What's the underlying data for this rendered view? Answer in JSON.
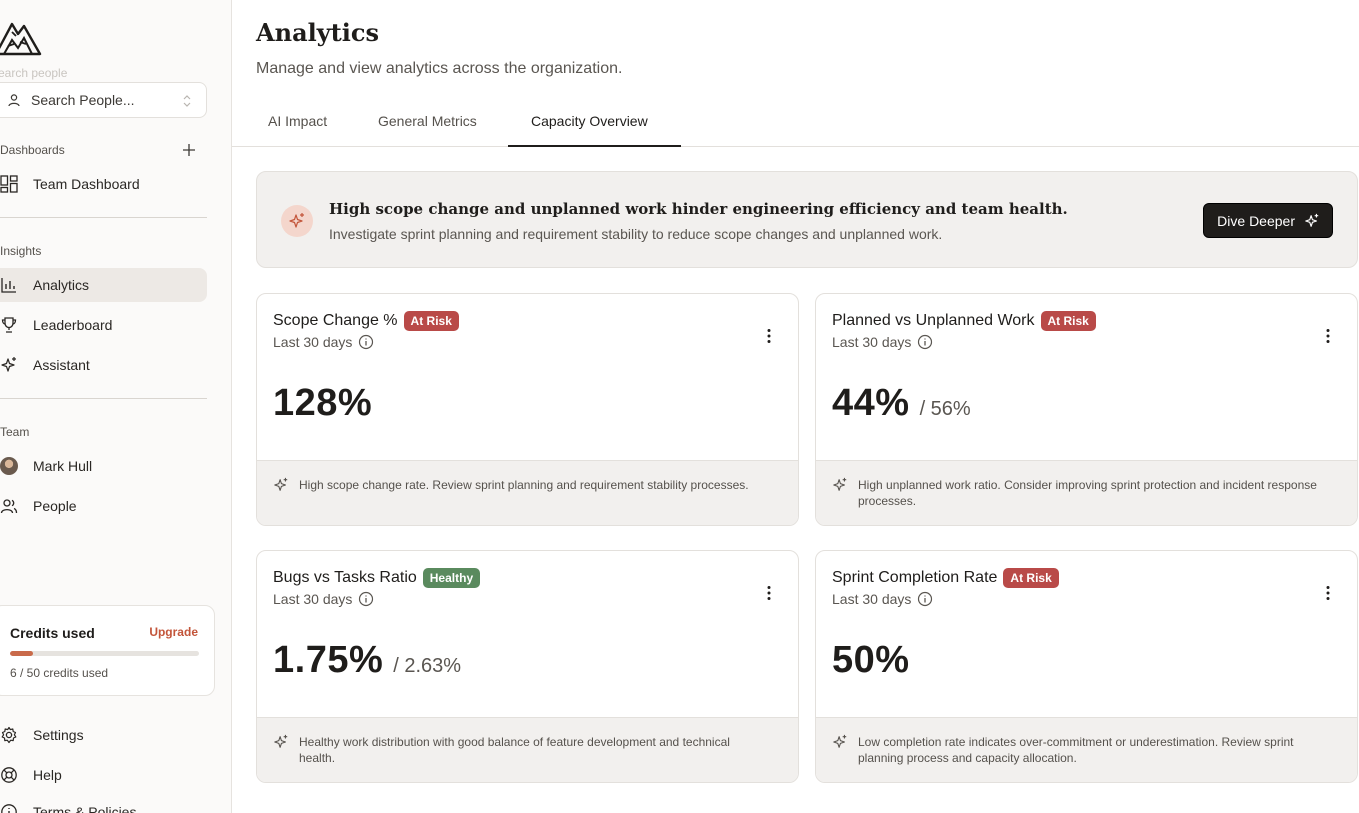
{
  "sidebar": {
    "search_hint": "earch people",
    "search_placeholder": "Search People...",
    "dashboards_label": "Dashboards",
    "dashboards": [
      {
        "label": "Team Dashboard",
        "icon": "grid-icon"
      }
    ],
    "insights_label": "Insights",
    "insights": [
      {
        "label": "Analytics",
        "icon": "bar-chart-icon",
        "active": true
      },
      {
        "label": "Leaderboard",
        "icon": "trophy-icon"
      },
      {
        "label": "Assistant",
        "icon": "sparkle-icon"
      }
    ],
    "team_label": "Team",
    "team": [
      {
        "label": "Mark Hull",
        "icon": "avatar"
      },
      {
        "label": "People",
        "icon": "users-icon"
      }
    ],
    "credits": {
      "title": "Credits used",
      "upgrade": "Upgrade",
      "used": 6,
      "total": 50,
      "count_text": "6 / 50 credits used"
    },
    "bottom": [
      {
        "label": "Settings",
        "icon": "gear-icon"
      },
      {
        "label": "Help",
        "icon": "lifebuoy-icon"
      },
      {
        "label": "Terms & Policies",
        "icon": "info-icon"
      }
    ]
  },
  "main": {
    "title": "Analytics",
    "subtitle": "Manage and view analytics across the organization.",
    "tabs": [
      {
        "label": "AI Impact"
      },
      {
        "label": "General Metrics"
      },
      {
        "label": "Capacity Overview",
        "active": true
      }
    ],
    "insight": {
      "headline": "High scope change and unplanned work hinder engineering efficiency and team health.",
      "detail": "Investigate sprint planning and requirement stability to reduce scope changes and unplanned work.",
      "button": "Dive Deeper"
    },
    "cards": [
      {
        "title": "Scope Change %",
        "status": "At Risk",
        "period": "Last 30 days",
        "value": "128%",
        "secondary": "",
        "note": "High scope change rate. Review sprint planning and requirement stability processes."
      },
      {
        "title": "Planned vs Unplanned Work",
        "status": "At Risk",
        "period": "Last 30 days",
        "value": "44%",
        "secondary": "/ 56%",
        "note": "High unplanned work ratio. Consider improving sprint protection and incident response processes."
      },
      {
        "title": "Bugs vs Tasks Ratio",
        "status": "Healthy",
        "period": "Last 30 days",
        "value": "1.75%",
        "secondary": "/ 2.63%",
        "note": "Healthy work distribution with good balance of feature development and technical health."
      },
      {
        "title": "Sprint Completion Rate",
        "status": "At Risk",
        "period": "Last 30 days",
        "value": "50%",
        "secondary": "",
        "note": "Low completion rate indicates over-commitment or underestimation. Review sprint planning process and capacity allocation."
      }
    ]
  },
  "colors": {
    "accent": "#c3553a",
    "at_risk": "#b94a48",
    "healthy": "#5a8a5e",
    "active_nav": "#ede9e5"
  }
}
